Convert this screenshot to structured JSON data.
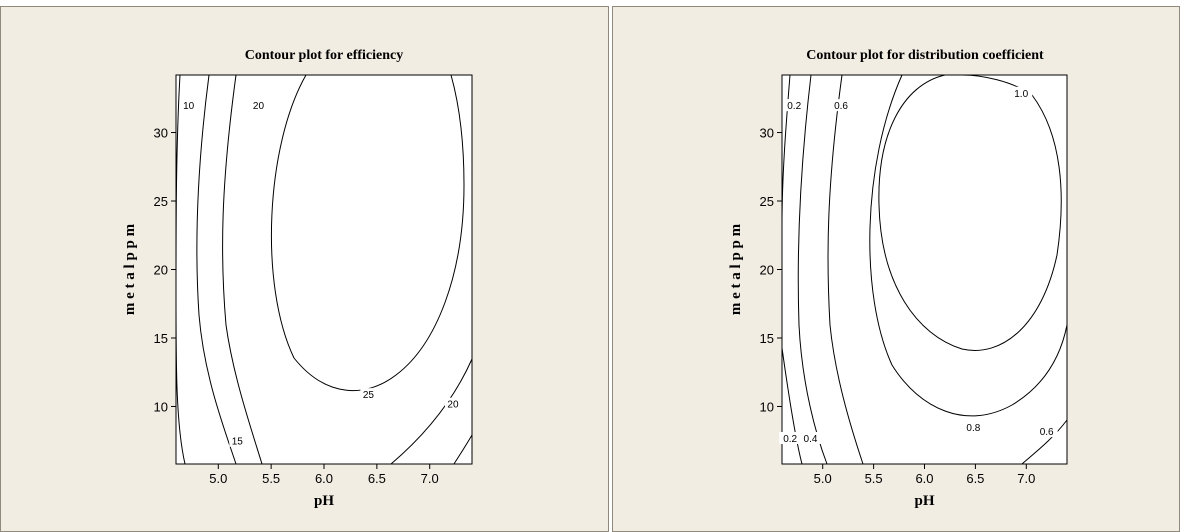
{
  "chart_data": [
    {
      "type": "contour",
      "title": "Contour plot for efficiency",
      "xlabel": "pH",
      "ylabel": "m e t a l  p p m",
      "xlim": [
        4.6,
        7.4
      ],
      "ylim": [
        5.8,
        34.2
      ],
      "xticks": [
        "5.0",
        "5.5",
        "6.0",
        "6.5",
        "7.0"
      ],
      "yticks": [
        "10",
        "15",
        "20",
        "25",
        "30"
      ],
      "levels": [
        {
          "label": "10",
          "label_at": [
            4.72,
            32.0
          ]
        },
        {
          "label": "15",
          "label_at": [
            5.18,
            7.5
          ]
        },
        {
          "label": "20",
          "label_at": [
            5.38,
            32.0
          ]
        },
        {
          "label": "20",
          "label_at": [
            7.22,
            10.2
          ]
        },
        {
          "label": "25",
          "label_at": [
            6.42,
            10.9
          ]
        }
      ],
      "center": [
        6.25,
        24.0
      ],
      "grid": false
    },
    {
      "type": "contour",
      "title": "Contour plot for distribution coefficient",
      "xlabel": "pH",
      "ylabel": "m e t a l  p p m",
      "xlim": [
        4.6,
        7.4
      ],
      "ylim": [
        5.8,
        34.2
      ],
      "xticks": [
        "5.0",
        "5.5",
        "6.0",
        "6.5",
        "7.0"
      ],
      "yticks": [
        "10",
        "15",
        "20",
        "25",
        "30"
      ],
      "levels": [
        {
          "label": "0.2",
          "label_at": [
            4.72,
            32.0
          ]
        },
        {
          "label": "0.2",
          "label_at": [
            4.68,
            7.7
          ]
        },
        {
          "label": "0.4",
          "label_at": [
            4.88,
            7.7
          ]
        },
        {
          "label": "0.6",
          "label_at": [
            5.18,
            32.0
          ]
        },
        {
          "label": "0.6",
          "label_at": [
            7.2,
            8.2
          ]
        },
        {
          "label": "0.8",
          "label_at": [
            6.48,
            8.5
          ]
        },
        {
          "label": "1.0",
          "label_at": [
            6.95,
            32.9
          ]
        }
      ],
      "center": [
        6.25,
        22.0
      ],
      "grid": false
    }
  ]
}
